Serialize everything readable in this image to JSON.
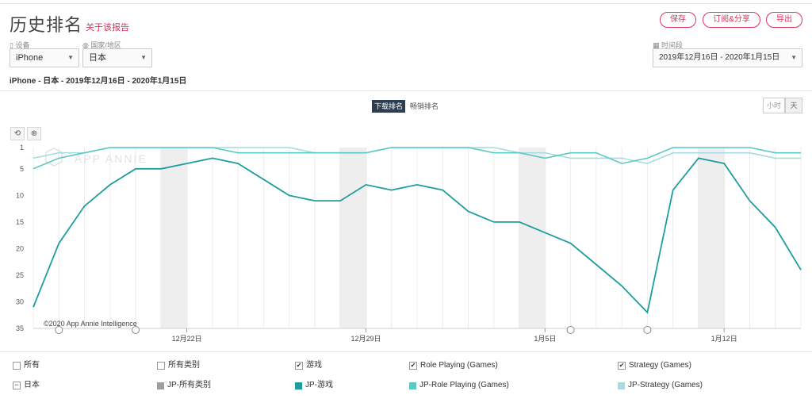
{
  "header": {
    "title": "历史排名",
    "about_link": "关于该报告",
    "buttons": {
      "save": "保存",
      "subscribe": "订阅&分享",
      "export": "导出"
    }
  },
  "filters": {
    "device_label": "设备",
    "device_value": "iPhone",
    "country_label": "国家/地区",
    "country_value": "日本",
    "period_label": "时间段",
    "period_value": "2019年12月16日 - 2020年1月15日"
  },
  "subtitle": "iPhone - 日本 - 2019年12月16日 - 2020年1月15日",
  "rank_tabs": {
    "download": "下载排名",
    "grossing": "畅销排名"
  },
  "unit_toggle": {
    "hour": "小时",
    "day": "天"
  },
  "tools": {
    "reset": "⟲",
    "zoom": "⊕"
  },
  "watermark": "APP ANNIE",
  "copyright": "©2020 App Annie Intelligence",
  "legend": {
    "categories": [
      "所有",
      "所有类别",
      "游戏",
      "Role Playing (Games)",
      "Strategy (Games)"
    ],
    "categories_checked": [
      false,
      false,
      true,
      true,
      true
    ],
    "country": "日本",
    "series": [
      "JP-所有类别",
      "JP-游戏",
      "JP-Role Playing (Games)",
      "JP-Strategy (Games)"
    ]
  },
  "colors": {
    "accent": "#d9345c",
    "series_all": "#9e9e9e",
    "series_games": "#1f9d9d",
    "series_rpg": "#5cc8c4",
    "series_strategy": "#a6dcdf",
    "weekend_band": "#eeeeee",
    "active_tab": "#2d3e50"
  },
  "chart_data": {
    "type": "line",
    "y_reversed": true,
    "ylim": [
      1,
      35
    ],
    "y_ticks": [
      1,
      5,
      10,
      15,
      20,
      25,
      30,
      35
    ],
    "x_tick_labels": [
      {
        "label": "12月22日",
        "day": 6
      },
      {
        "label": "12月29日",
        "day": 13
      },
      {
        "label": "1月5日",
        "day": 20
      },
      {
        "label": "1月12日",
        "day": 27
      }
    ],
    "dates": [
      "12/16",
      "12/17",
      "12/18",
      "12/19",
      "12/20",
      "12/21",
      "12/22",
      "12/23",
      "12/24",
      "12/25",
      "12/26",
      "12/27",
      "12/28",
      "12/29",
      "12/30",
      "12/31",
      "1/1",
      "1/2",
      "1/3",
      "1/4",
      "1/5",
      "1/6",
      "1/7",
      "1/8",
      "1/9",
      "1/10",
      "1/11",
      "1/12",
      "1/13",
      "1/14",
      "1/15"
    ],
    "weekend_bands": [
      [
        5,
        6
      ],
      [
        12,
        13
      ],
      [
        19,
        20
      ],
      [
        26,
        27
      ]
    ],
    "event_markers": [
      1,
      4,
      21,
      24
    ],
    "series": [
      {
        "name": "JP-游戏",
        "values": [
          31,
          19,
          12,
          8,
          5,
          5,
          4,
          3,
          4,
          7,
          10,
          11,
          11,
          8,
          9,
          8,
          9,
          13,
          15,
          15,
          17,
          19,
          23,
          27,
          32,
          9,
          3,
          4,
          11,
          16,
          24
        ]
      },
      {
        "name": "JP-Role Playing (Games)",
        "values": [
          5,
          3,
          2,
          1,
          1,
          1,
          1,
          1,
          2,
          2,
          2,
          2,
          2,
          2,
          1,
          1,
          1,
          1,
          2,
          2,
          3,
          2,
          2,
          4,
          3,
          1,
          1,
          1,
          1,
          2,
          2
        ]
      },
      {
        "name": "JP-Strategy (Games)",
        "values": [
          3,
          2,
          2,
          1,
          1,
          1,
          1,
          1,
          1,
          1,
          1,
          2,
          2,
          2,
          1,
          1,
          1,
          1,
          1,
          2,
          2,
          3,
          3,
          3,
          4,
          2,
          2,
          2,
          2,
          3,
          3
        ]
      }
    ]
  }
}
